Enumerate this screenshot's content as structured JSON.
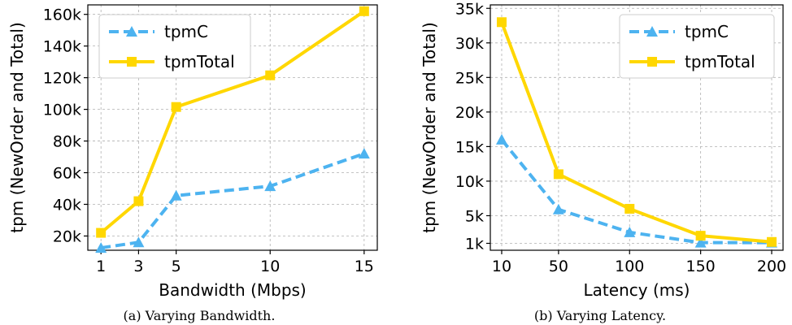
{
  "chart_data": [
    {
      "type": "line",
      "caption": "(a)  Varying Bandwidth.",
      "xlabel": "Bandwidth (Mbps)",
      "ylabel": "tpm (NewOrder and Total)",
      "x": [
        1,
        3,
        5,
        10,
        15
      ],
      "xticks": [
        1,
        3,
        5,
        10,
        15
      ],
      "xtick_labels": [
        "1",
        "3",
        "5",
        "10",
        "15"
      ],
      "xlim": [
        0.3,
        15.7
      ],
      "ylim": [
        11000,
        166000
      ],
      "yticks": [
        20000,
        40000,
        60000,
        80000,
        100000,
        120000,
        140000,
        160000
      ],
      "ytick_labels": [
        "20k",
        "40k",
        "60k",
        "80k",
        "100k",
        "120k",
        "140k",
        "160k"
      ],
      "grid": true,
      "legend_position": "top-left",
      "series": [
        {
          "name": "tpmC",
          "values": [
            12500,
            16000,
            45500,
            51500,
            72000
          ],
          "color": "#4db3f0",
          "style": "dashed",
          "marker": "triangle"
        },
        {
          "name": "tpmTotal",
          "values": [
            22000,
            42000,
            101500,
            121500,
            162000
          ],
          "color": "#ffd700",
          "style": "solid",
          "marker": "square"
        }
      ]
    },
    {
      "type": "line",
      "caption": "(b)  Varying Latency.",
      "xlabel": "Latency (ms)",
      "ylabel": "tpm (NewOrder and Total)",
      "x": [
        10,
        50,
        100,
        150,
        200
      ],
      "xticks": [
        10,
        50,
        100,
        150,
        200
      ],
      "xtick_labels": [
        "10",
        "50",
        "100",
        "150",
        "200"
      ],
      "xlim": [
        2,
        208
      ],
      "ylim": [
        0,
        35500
      ],
      "yticks": [
        1000,
        5000,
        10000,
        15000,
        20000,
        25000,
        30000,
        35000
      ],
      "ytick_labels": [
        "1k",
        "5k",
        "10k",
        "15k",
        "20k",
        "25k",
        "30k",
        "35k"
      ],
      "grid": true,
      "legend_position": "top-right",
      "series": [
        {
          "name": "tpmC",
          "values": [
            16000,
            5900,
            2600,
            1100,
            1100
          ],
          "color": "#4db3f0",
          "style": "dashed",
          "marker": "triangle"
        },
        {
          "name": "tpmTotal",
          "values": [
            33000,
            11000,
            6000,
            2100,
            1200
          ],
          "color": "#ffd700",
          "style": "solid",
          "marker": "square"
        }
      ]
    }
  ]
}
